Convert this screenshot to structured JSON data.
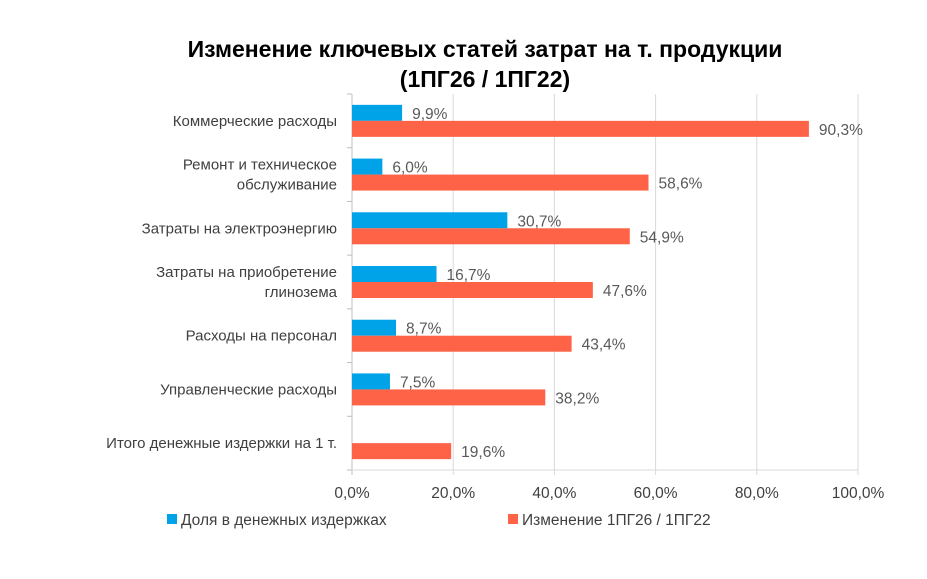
{
  "chart_data": {
    "type": "bar",
    "orientation": "horizontal",
    "title": [
      "Изменение ключевых статей затрат на т. продукции",
      "(1ПГ26 / 1ПГ22)"
    ],
    "categories": [
      [
        "Коммерческие расходы"
      ],
      [
        "Ремонт и техническое",
        "обслуживание"
      ],
      [
        "Затраты на электроэнергию"
      ],
      [
        "Затраты на приобретение",
        "глинозема"
      ],
      [
        "Расходы на персонал"
      ],
      [
        "Управленческие расходы"
      ],
      [
        "Итого денежные издержки на 1 т."
      ]
    ],
    "series": [
      {
        "name": "Доля в денежных издержках",
        "color": "#00A2E8",
        "values": [
          9.9,
          6.0,
          30.7,
          16.7,
          8.7,
          7.5,
          null
        ],
        "labels": [
          "9,9%",
          "6,0%",
          "30,7%",
          "16,7%",
          "8,7%",
          "7,5%",
          ""
        ]
      },
      {
        "name": "Изменение 1ПГ26 / 1ПГ22",
        "color": "#FF6347",
        "values": [
          90.3,
          58.6,
          54.9,
          47.6,
          43.4,
          38.2,
          19.6
        ],
        "labels": [
          "90,3%",
          "58,6%",
          "54,9%",
          "47,6%",
          "43,4%",
          "38,2%",
          "19,6%"
        ]
      }
    ],
    "xlim": [
      0,
      100
    ],
    "xticks": [
      0,
      20,
      40,
      60,
      80,
      100
    ],
    "xtick_labels": [
      "0,0%",
      "20,0%",
      "40,0%",
      "60,0%",
      "80,0%",
      "100,0%"
    ],
    "grid": true,
    "legend_position": "bottom"
  }
}
